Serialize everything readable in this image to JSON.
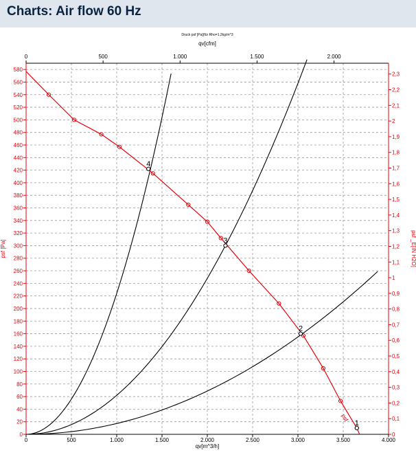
{
  "page": {
    "title": "Charts: Air flow 60 Hz"
  },
  "chart_data": {
    "type": "line",
    "title": "Druck psf  [Pa](für Rho=1,2kg/m^3",
    "x_bottom": {
      "label": "qv[m^3/h]",
      "lim": [
        0,
        4000
      ],
      "ticks": [
        0,
        500,
        1000,
        1500,
        2000,
        2500,
        3000,
        3500,
        4000
      ],
      "tick_labels": [
        "0",
        "500",
        "1.000",
        "1.500",
        "2.000",
        "2.500",
        "3.000",
        "3.500",
        "4.000"
      ]
    },
    "x_top": {
      "label": "qv[cfm]",
      "lim": [
        0,
        2354
      ],
      "ticks": [
        0,
        500,
        1000,
        1500,
        2000
      ],
      "tick_labels": [
        "0",
        "500",
        "1.000",
        "1.500",
        "2.000"
      ]
    },
    "y_left": {
      "label": "psf  [Pa]",
      "lim": [
        0,
        590
      ],
      "ticks": [
        0,
        20,
        40,
        60,
        80,
        100,
        120,
        140,
        160,
        180,
        200,
        220,
        240,
        260,
        280,
        300,
        320,
        340,
        360,
        380,
        400,
        420,
        440,
        460,
        480,
        500,
        520,
        540,
        560,
        580
      ],
      "tick_labels": [
        "0",
        "20",
        "40",
        "60",
        "80",
        "100",
        "120",
        "140",
        "160",
        "180",
        "200",
        "220",
        "240",
        "260",
        "280",
        "300",
        "320",
        "340",
        "360",
        "380",
        "400",
        "420",
        "440",
        "460",
        "480",
        "500",
        "520",
        "540",
        "560",
        "580"
      ]
    },
    "y_right": {
      "label": "psf _E[IN H2O]",
      "lim": [
        0,
        2.369
      ],
      "ticks": [
        0,
        0.1,
        0.2,
        0.3,
        0.4,
        0.5,
        0.6,
        0.7,
        0.8,
        0.9,
        1,
        1.1,
        1.2,
        1.3,
        1.4,
        1.5,
        1.6,
        1.7,
        1.8,
        1.9,
        2,
        2.1,
        2.2,
        2.3
      ],
      "tick_labels": [
        "0",
        "0,1",
        "0,2",
        "0,3",
        "0,4",
        "0,5",
        "0,6",
        "0,7",
        "0,8",
        "0,9",
        "1",
        "1,1",
        "1,2",
        "1,3",
        "1,4",
        "1,5",
        "1,6",
        "1,7",
        "1,8",
        "1,9",
        "2",
        "2,1",
        "2,2",
        "2,3"
      ]
    },
    "grid": true,
    "colors": {
      "fan_curve": "#e8000b",
      "system_curve": "#000000",
      "axis_red": "#e8000b"
    },
    "fan_curve": {
      "name": "psf",
      "x": [
        0,
        250,
        530,
        830,
        1030,
        1400,
        1790,
        2000,
        2150,
        2460,
        2790,
        3060,
        3280,
        3470,
        3650,
        3680
      ],
      "y": [
        577,
        540,
        500,
        477,
        457,
        415,
        365,
        338,
        312,
        260,
        208,
        157,
        105,
        53,
        10,
        0
      ],
      "markers": [
        250,
        530,
        830,
        1030,
        1400,
        1790,
        2000,
        2150,
        2460,
        2790,
        3060,
        3280,
        3470,
        3650
      ]
    },
    "system_curves": [
      {
        "k": 1.72e-05,
        "x_max": 3880
      },
      {
        "k": 6.2e-05,
        "x_max": 3100
      },
      {
        "k": 0.000224,
        "x_max": 1600
      }
    ],
    "operating_points": [
      {
        "label": "1",
        "x": 3650,
        "y": 10
      },
      {
        "label": "2",
        "x": 3030,
        "y": 160
      },
      {
        "label": "3",
        "x": 2200,
        "y": 300
      },
      {
        "label": "4",
        "x": 1350,
        "y": 422
      }
    ]
  }
}
